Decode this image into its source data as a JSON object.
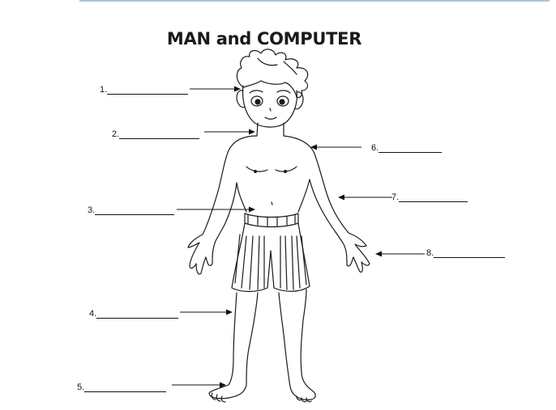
{
  "title": "MAN and COMPUTER",
  "labels": [
    {
      "num": "1."
    },
    {
      "num": "2."
    },
    {
      "num": "3."
    },
    {
      "num": "4."
    },
    {
      "num": "5."
    },
    {
      "num": "6."
    },
    {
      "num": "7."
    },
    {
      "num": "8."
    }
  ]
}
